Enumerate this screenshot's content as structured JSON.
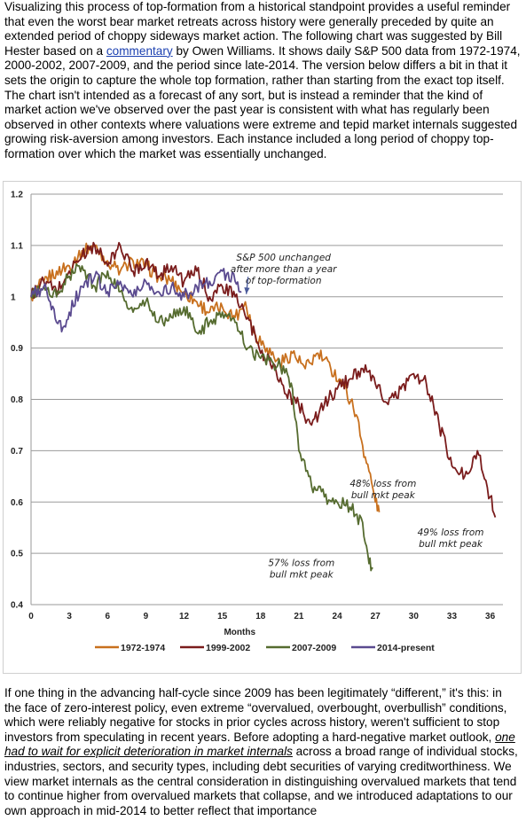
{
  "intro": {
    "part1": "Visualizing this process of top-formation from a historical standpoint provides a useful reminder that even the worst bear market retreats across history were generally preceded by quite an extended period of choppy sideways market action. The following chart was suggested by Bill Hester based on a ",
    "link": "commentary",
    "part2": " by Owen Williams. It shows daily S&P 500 data from 1972-1974, 2000-2002, 2007-2009, and the period since late-2014. The version below differs a bit in that it sets the origin to capture the whole top formation, rather than starting from the exact top itself. The chart isn't intended as a forecast of any sort, but is instead a reminder that the kind of market action we've observed over the past year is consistent with what has regularly been observed in other contexts where valuations were extreme and tepid market internals suggested growing risk-aversion among investors. Each instance included a long period of choppy top-formation over which the market was essentially unchanged."
  },
  "outro": {
    "part1": "If one thing in the advancing half-cycle since 2009 has been legitimately “different,” it's this: in the face of zero-interest policy, even extreme “overvalued, overbought, overbullish” conditions, which were reliably negative for stocks in prior cycles across history, weren't sufficient to stop investors from speculating in recent years. Before adopting a hard-negative market outlook, ",
    "emphasis": "one had to wait for explicit deterioration in market internals",
    "part2": " across a broad range of individual stocks, industries, sectors, and security types, including debt securities of varying creditworthiness. We view market internals as the central consideration in distinguishing overvalued markets that tend to continue higher from overvalued markets that collapse, and we introduced adaptations to our own approach in mid-2014 to better reflect that importance"
  },
  "chart_data": {
    "type": "line",
    "title": "",
    "xlabel": "Months",
    "ylabel": "",
    "xlim": [
      0,
      37
    ],
    "ylim": [
      0.4,
      1.2
    ],
    "xticks": [
      0,
      3,
      6,
      9,
      12,
      15,
      18,
      21,
      24,
      27,
      30,
      33,
      36
    ],
    "yticks": [
      "0.4",
      "0.5",
      "0.6",
      "0.7",
      "0.8",
      "0.9",
      "1",
      "1.1",
      "1.2"
    ],
    "grid": true,
    "legend_position": "bottom",
    "series": [
      {
        "name": "1972-1974",
        "color": "#c8701e",
        "points": [
          [
            0,
            1.0
          ],
          [
            1,
            1.03
          ],
          [
            2,
            1.05
          ],
          [
            3,
            1.06
          ],
          [
            4,
            1.09
          ],
          [
            5,
            1.1
          ],
          [
            6,
            1.07
          ],
          [
            7,
            1.05
          ],
          [
            8,
            1.07
          ],
          [
            9,
            1.06
          ],
          [
            10,
            1.04
          ],
          [
            11,
            1.03
          ],
          [
            12,
            1.01
          ],
          [
            13,
            0.99
          ],
          [
            14,
            0.97
          ],
          [
            15,
            0.98
          ],
          [
            16,
            0.96
          ],
          [
            16.8,
            0.99
          ],
          [
            17.5,
            0.93
          ],
          [
            18.5,
            0.9
          ],
          [
            19.5,
            0.87
          ],
          [
            20.5,
            0.89
          ],
          [
            21.5,
            0.86
          ],
          [
            22.5,
            0.89
          ],
          [
            23.5,
            0.86
          ],
          [
            24.5,
            0.83
          ],
          [
            25.5,
            0.77
          ],
          [
            26,
            0.71
          ],
          [
            26.5,
            0.66
          ],
          [
            27,
            0.6
          ],
          [
            27.3,
            0.58
          ]
        ]
      },
      {
        "name": "1999-2002",
        "color": "#7a1c1c",
        "points": [
          [
            0,
            1.0
          ],
          [
            1,
            1.03
          ],
          [
            2,
            1.01
          ],
          [
            3,
            1.05
          ],
          [
            4,
            1.08
          ],
          [
            5,
            1.1
          ],
          [
            6,
            1.06
          ],
          [
            7,
            1.1
          ],
          [
            8,
            1.05
          ],
          [
            9,
            1.07
          ],
          [
            10,
            1.04
          ],
          [
            11,
            1.06
          ],
          [
            12,
            1.03
          ],
          [
            13,
            1.05
          ],
          [
            14,
            1.0
          ],
          [
            15,
            1.02
          ],
          [
            16,
            1.0
          ],
          [
            17,
            0.96
          ],
          [
            18,
            0.89
          ],
          [
            19,
            0.87
          ],
          [
            20,
            0.81
          ],
          [
            21,
            0.79
          ],
          [
            22,
            0.75
          ],
          [
            23,
            0.79
          ],
          [
            24,
            0.82
          ],
          [
            25,
            0.84
          ],
          [
            26,
            0.86
          ],
          [
            27,
            0.83
          ],
          [
            28,
            0.79
          ],
          [
            29,
            0.82
          ],
          [
            30,
            0.85
          ],
          [
            31,
            0.83
          ],
          [
            32,
            0.75
          ],
          [
            33,
            0.67
          ],
          [
            34,
            0.65
          ],
          [
            35,
            0.7
          ],
          [
            36,
            0.61
          ],
          [
            36.4,
            0.57
          ]
        ]
      },
      {
        "name": "2007-2009",
        "color": "#556b2f",
        "points": [
          [
            0,
            1.0
          ],
          [
            1,
            1.02
          ],
          [
            2,
            1.0
          ],
          [
            3,
            1.04
          ],
          [
            4,
            1.06
          ],
          [
            5,
            1.02
          ],
          [
            6,
            1.05
          ],
          [
            7,
            1.01
          ],
          [
            8,
            0.97
          ],
          [
            9,
            0.99
          ],
          [
            10,
            0.95
          ],
          [
            11,
            0.96
          ],
          [
            12,
            0.98
          ],
          [
            13,
            0.93
          ],
          [
            14,
            0.95
          ],
          [
            15,
            0.97
          ],
          [
            16,
            0.95
          ],
          [
            17,
            0.9
          ],
          [
            18,
            0.88
          ],
          [
            19,
            0.87
          ],
          [
            20,
            0.86
          ],
          [
            20.5,
            0.82
          ],
          [
            21,
            0.7
          ],
          [
            22,
            0.63
          ],
          [
            23,
            0.61
          ],
          [
            24,
            0.6
          ],
          [
            25,
            0.59
          ],
          [
            26,
            0.56
          ],
          [
            26.5,
            0.48
          ],
          [
            26.8,
            0.47
          ]
        ]
      },
      {
        "name": "2014-present",
        "color": "#5a4a8f",
        "points": [
          [
            0,
            1.0
          ],
          [
            1,
            1.02
          ],
          [
            1.5,
            0.99
          ],
          [
            2,
            0.95
          ],
          [
            2.5,
            0.94
          ],
          [
            3,
            0.97
          ],
          [
            4,
            1.02
          ],
          [
            5,
            1.04
          ],
          [
            6,
            1.01
          ],
          [
            7,
            1.03
          ],
          [
            8,
            1.0
          ],
          [
            9,
            1.03
          ],
          [
            10,
            1.01
          ],
          [
            11,
            1.02
          ],
          [
            12,
            1.0
          ],
          [
            13,
            1.02
          ],
          [
            14,
            1.03
          ],
          [
            15,
            1.05
          ],
          [
            16,
            1.03
          ],
          [
            16.5,
            1.01
          ]
        ]
      }
    ],
    "annotations": [
      {
        "lines": [
          "S&P 500 unchanged",
          "after more than a year",
          "of top-formation"
        ],
        "x": 19.8,
        "y": 1.07,
        "arrow_to": [
          16.6,
          1.0
        ]
      },
      {
        "lines": [
          "48% loss from",
          "bull mkt peak"
        ],
        "x": 27.6,
        "y": 0.63
      },
      {
        "lines": [
          "49% loss from",
          "bull mkt peak"
        ],
        "x": 32.9,
        "y": 0.535
      },
      {
        "lines": [
          "57% loss from",
          "bull mkt peak"
        ],
        "x": 21.2,
        "y": 0.475
      }
    ]
  }
}
